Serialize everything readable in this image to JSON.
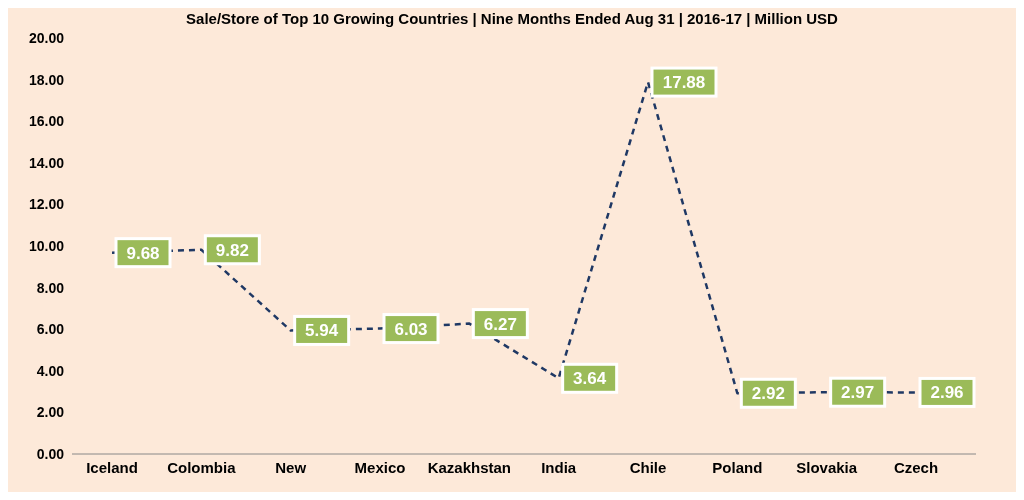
{
  "chart_data": {
    "type": "line",
    "title": "Sale/Store of Top 10 Growing Countries | Nine Months Ended Aug 31 | 2016-17 | Million USD",
    "categories": [
      "Iceland",
      "Colombia",
      "New",
      "Mexico",
      "Kazakhstan",
      "India",
      "Chile",
      "Poland",
      "Slovakia",
      "Czech"
    ],
    "series": [
      {
        "color": "#1f3864",
        "values": [
          9.68,
          9.82,
          5.94,
          6.03,
          6.27,
          3.64,
          17.88,
          2.92,
          2.97,
          2.96
        ]
      }
    ],
    "ylim": [
      0,
      20
    ],
    "yticks": [
      {
        "value": 0,
        "label": "0.00"
      },
      {
        "value": 2,
        "label": "2.00"
      },
      {
        "value": 4,
        "label": "4.00"
      },
      {
        "value": 6,
        "label": "6.00"
      },
      {
        "value": 8,
        "label": "8.00"
      },
      {
        "value": 10,
        "label": "10.00"
      },
      {
        "value": 12,
        "label": "12.00"
      },
      {
        "value": 14,
        "label": "14.00"
      },
      {
        "value": 16,
        "label": "16.00"
      },
      {
        "value": 18,
        "label": "18.00"
      },
      {
        "value": 20,
        "label": "20.00"
      }
    ],
    "grid": false,
    "legend": false,
    "marker": "none",
    "line_style": "dashed",
    "data_labels": true
  }
}
